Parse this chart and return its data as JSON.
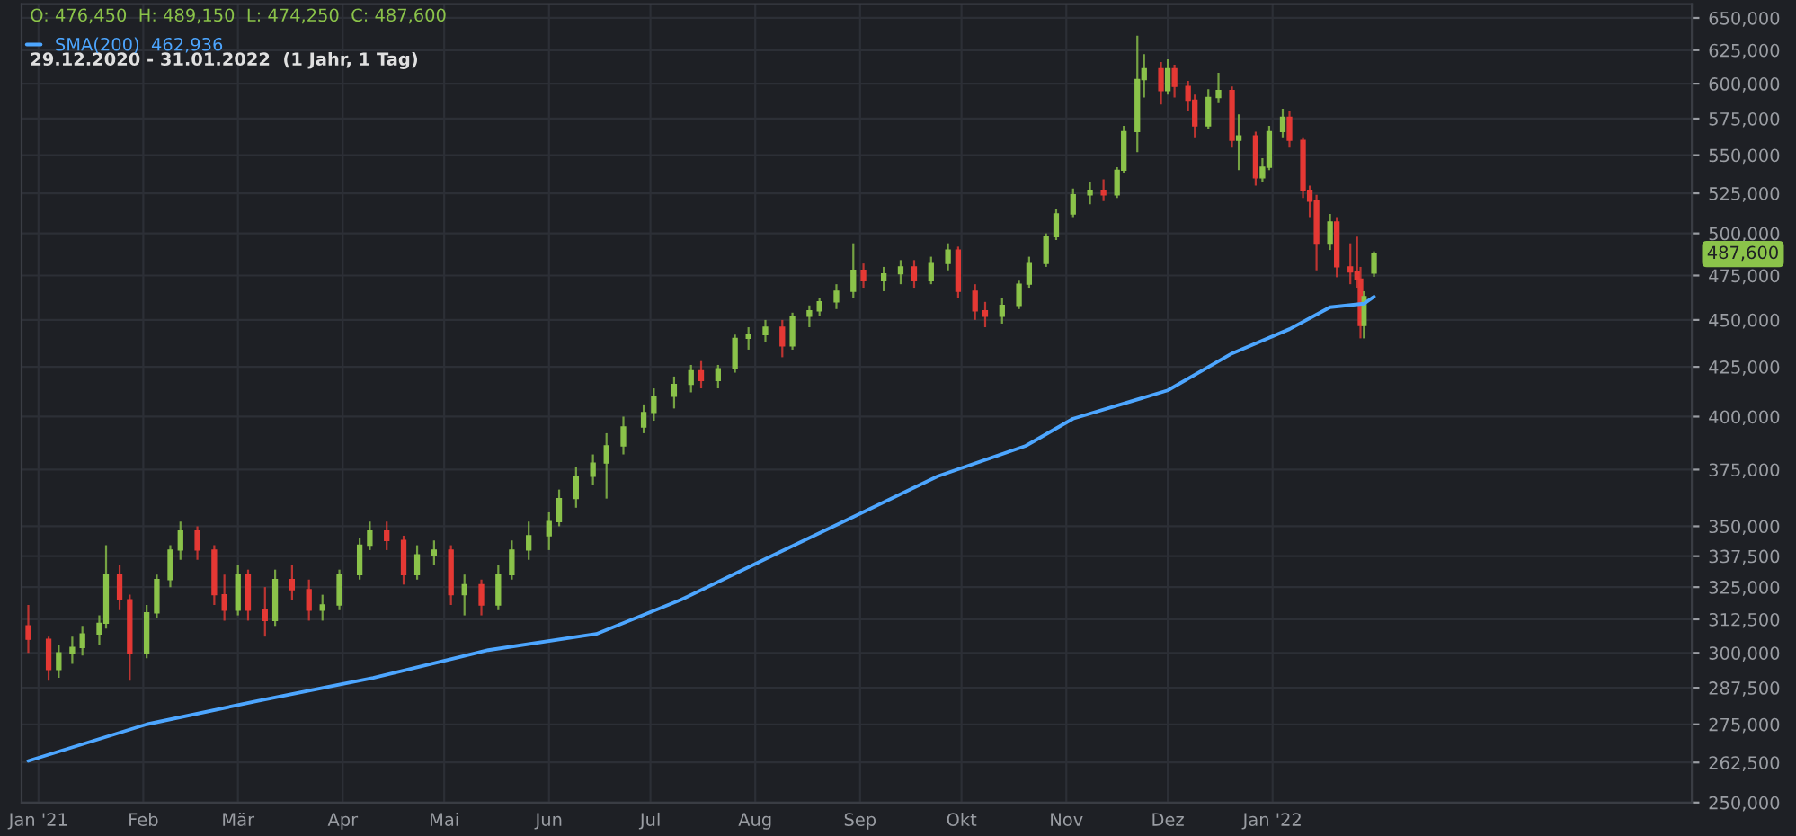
{
  "chart_data": {
    "type": "candlestick",
    "title": "O: 476,450  H: 489,150  L: 474,250  C: 487,600",
    "subtitle": "29.12.2020 - 31.01.2022  (1 Jahr, 1 Tag)",
    "x": [
      "2020-12-29",
      "2021-01-04",
      "2021-01-07",
      "2021-01-11",
      "2021-01-14",
      "2021-01-19",
      "2021-01-21",
      "2021-01-25",
      "2021-01-28",
      "2021-02-02",
      "2021-02-05",
      "2021-02-09",
      "2021-02-12",
      "2021-02-17",
      "2021-02-22",
      "2021-02-25",
      "2021-03-01",
      "2021-03-04",
      "2021-03-09",
      "2021-03-12",
      "2021-03-17",
      "2021-03-22",
      "2021-03-26",
      "2021-03-31",
      "2021-04-06",
      "2021-04-09",
      "2021-04-14",
      "2021-04-19",
      "2021-04-23",
      "2021-04-28",
      "2021-05-03",
      "2021-05-07",
      "2021-05-12",
      "2021-05-17",
      "2021-05-21",
      "2021-05-26",
      "2021-06-01",
      "2021-06-04",
      "2021-06-09",
      "2021-06-14",
      "2021-06-18",
      "2021-06-23",
      "2021-06-29",
      "2021-07-02",
      "2021-07-08",
      "2021-07-13",
      "2021-07-16",
      "2021-07-21",
      "2021-07-26",
      "2021-07-30",
      "2021-08-04",
      "2021-08-09",
      "2021-08-12",
      "2021-08-17",
      "2021-08-20",
      "2021-08-25",
      "2021-08-30",
      "2021-09-02",
      "2021-09-08",
      "2021-09-13",
      "2021-09-17",
      "2021-09-22",
      "2021-09-27",
      "2021-09-30",
      "2021-10-05",
      "2021-10-08",
      "2021-10-13",
      "2021-10-18",
      "2021-10-21",
      "2021-10-26",
      "2021-10-29",
      "2021-11-03",
      "2021-11-08",
      "2021-11-12",
      "2021-11-16",
      "2021-11-18",
      "2021-11-22",
      "2021-11-24",
      "2021-11-29",
      "2021-12-01",
      "2021-12-03",
      "2021-12-07",
      "2021-12-09",
      "2021-12-13",
      "2021-12-16",
      "2021-12-20",
      "2021-12-22",
      "2021-12-27",
      "2021-12-29",
      "2021-12-31",
      "2022-01-04",
      "2022-01-06",
      "2022-01-10",
      "2022-01-12",
      "2022-01-14",
      "2022-01-18",
      "2022-01-20",
      "2022-01-24",
      "2022-01-26",
      "2022-01-27",
      "2022-01-28",
      "2022-01-31"
    ],
    "ohlc": [
      [
        310000,
        318000,
        300000,
        305000
      ],
      [
        305000,
        306000,
        290000,
        294000
      ],
      [
        294000,
        303000,
        291000,
        300000
      ],
      [
        300000,
        306000,
        296000,
        302000
      ],
      [
        302000,
        310000,
        299000,
        307000
      ],
      [
        307000,
        314000,
        303000,
        311000
      ],
      [
        311000,
        342000,
        309000,
        330000
      ],
      [
        330000,
        334000,
        316000,
        320000
      ],
      [
        320000,
        322000,
        290000,
        300000
      ],
      [
        300000,
        318000,
        298000,
        315000
      ],
      [
        315000,
        330000,
        313000,
        328000
      ],
      [
        328000,
        342000,
        325000,
        340000
      ],
      [
        340000,
        352000,
        336000,
        348000
      ],
      [
        348000,
        350000,
        336000,
        340000
      ],
      [
        340000,
        342000,
        318000,
        322000
      ],
      [
        322000,
        330000,
        312000,
        316000
      ],
      [
        316000,
        334000,
        314000,
        330000
      ],
      [
        330000,
        332000,
        312000,
        316000
      ],
      [
        316000,
        325000,
        306000,
        312000
      ],
      [
        312000,
        332000,
        310000,
        328000
      ],
      [
        328000,
        334000,
        320000,
        324000
      ],
      [
        324000,
        328000,
        312000,
        316000
      ],
      [
        316000,
        322000,
        312000,
        318000
      ],
      [
        318000,
        332000,
        316000,
        330000
      ],
      [
        330000,
        345000,
        328000,
        342000
      ],
      [
        342000,
        352000,
        340000,
        348000
      ],
      [
        348000,
        352000,
        340000,
        344000
      ],
      [
        344000,
        346000,
        326000,
        330000
      ],
      [
        330000,
        342000,
        328000,
        338000
      ],
      [
        338000,
        344000,
        334000,
        340000
      ],
      [
        340000,
        342000,
        318000,
        322000
      ],
      [
        322000,
        330000,
        314000,
        326000
      ],
      [
        326000,
        328000,
        314000,
        318000
      ],
      [
        318000,
        334000,
        316000,
        330000
      ],
      [
        330000,
        344000,
        328000,
        340000
      ],
      [
        340000,
        352000,
        336000,
        346000
      ],
      [
        346000,
        356000,
        340000,
        352000
      ],
      [
        352000,
        366000,
        350000,
        362000
      ],
      [
        362000,
        376000,
        358000,
        372000
      ],
      [
        372000,
        382000,
        368000,
        378000
      ],
      [
        378000,
        392000,
        362000,
        386000
      ],
      [
        386000,
        400000,
        382000,
        395000
      ],
      [
        395000,
        406000,
        392000,
        402000
      ],
      [
        402000,
        414000,
        398000,
        410000
      ],
      [
        410000,
        420000,
        404000,
        416000
      ],
      [
        416000,
        426000,
        412000,
        423000
      ],
      [
        423000,
        428000,
        414000,
        418000
      ],
      [
        418000,
        426000,
        414000,
        424000
      ],
      [
        424000,
        442000,
        422000,
        440000
      ],
      [
        440000,
        446000,
        434000,
        442000
      ],
      [
        442000,
        450000,
        438000,
        446000
      ],
      [
        446000,
        450000,
        430000,
        436000
      ],
      [
        436000,
        454000,
        434000,
        452000
      ],
      [
        452000,
        458000,
        446000,
        455000
      ],
      [
        455000,
        462000,
        452000,
        460000
      ],
      [
        460000,
        470000,
        456000,
        466000
      ],
      [
        466000,
        494000,
        462000,
        478000
      ],
      [
        478000,
        482000,
        468000,
        472000
      ],
      [
        472000,
        480000,
        466000,
        476000
      ],
      [
        476000,
        484000,
        470000,
        480000
      ],
      [
        480000,
        484000,
        468000,
        472000
      ],
      [
        472000,
        486000,
        470000,
        482000
      ],
      [
        482000,
        494000,
        478000,
        490000
      ],
      [
        490000,
        492000,
        462000,
        466000
      ],
      [
        466000,
        470000,
        450000,
        455000
      ],
      [
        455000,
        460000,
        446000,
        452000
      ],
      [
        452000,
        462000,
        448000,
        458000
      ],
      [
        458000,
        472000,
        456000,
        470000
      ],
      [
        470000,
        486000,
        468000,
        482000
      ],
      [
        482000,
        500000,
        480000,
        498000
      ],
      [
        498000,
        515000,
        496000,
        512000
      ],
      [
        512000,
        528000,
        510000,
        524000
      ],
      [
        524000,
        532000,
        518000,
        527000
      ],
      [
        527000,
        534000,
        520000,
        524000
      ],
      [
        524000,
        542000,
        522000,
        540000
      ],
      [
        540000,
        570000,
        538000,
        566000
      ],
      [
        566000,
        636000,
        552000,
        603000
      ],
      [
        603000,
        622000,
        590000,
        611000
      ],
      [
        611000,
        616000,
        585000,
        595000
      ],
      [
        595000,
        618000,
        592000,
        611000
      ],
      [
        611000,
        614000,
        590000,
        598000
      ],
      [
        598000,
        602000,
        580000,
        588000
      ],
      [
        588000,
        592000,
        562000,
        570000
      ],
      [
        570000,
        596000,
        568000,
        590000
      ],
      [
        590000,
        608000,
        586000,
        595000
      ],
      [
        595000,
        598000,
        555000,
        560000
      ],
      [
        560000,
        578000,
        540000,
        563000
      ],
      [
        563000,
        566000,
        530000,
        535000
      ],
      [
        535000,
        548000,
        532000,
        542000
      ],
      [
        542000,
        570000,
        540000,
        566000
      ],
      [
        566000,
        582000,
        562000,
        576000
      ],
      [
        576000,
        580000,
        555000,
        560000
      ],
      [
        560000,
        562000,
        522000,
        527000
      ],
      [
        527000,
        530000,
        510000,
        520000
      ],
      [
        520000,
        524000,
        478000,
        494000
      ],
      [
        494000,
        512000,
        490000,
        507000
      ],
      [
        507000,
        510000,
        474000,
        480000
      ],
      [
        480000,
        494000,
        470000,
        477000
      ],
      [
        477000,
        498000,
        468000,
        473000
      ],
      [
        473000,
        480000,
        440000,
        447000
      ],
      [
        447000,
        466000,
        440000,
        463000
      ],
      [
        476450,
        489150,
        474250,
        487600
      ]
    ],
    "colors": [
      "#e53935",
      "#e53935",
      "#8bc34a",
      "#8bc34a",
      "#8bc34a",
      "#8bc34a",
      "#8bc34a",
      "#e53935",
      "#e53935",
      "#8bc34a",
      "#8bc34a",
      "#8bc34a",
      "#8bc34a",
      "#e53935",
      "#e53935",
      "#e53935",
      "#8bc34a",
      "#e53935",
      "#e53935",
      "#8bc34a",
      "#e53935",
      "#e53935",
      "#8bc34a",
      "#8bc34a",
      "#8bc34a",
      "#8bc34a",
      "#e53935",
      "#e53935",
      "#8bc34a",
      "#8bc34a",
      "#e53935",
      "#8bc34a",
      "#e53935",
      "#8bc34a",
      "#8bc34a",
      "#8bc34a",
      "#8bc34a",
      "#8bc34a",
      "#8bc34a",
      "#8bc34a",
      "#8bc34a",
      "#8bc34a",
      "#8bc34a",
      "#8bc34a",
      "#8bc34a",
      "#8bc34a",
      "#e53935",
      "#8bc34a",
      "#8bc34a",
      "#8bc34a",
      "#8bc34a",
      "#e53935",
      "#8bc34a",
      "#8bc34a",
      "#8bc34a",
      "#8bc34a",
      "#8bc34a",
      "#e53935",
      "#8bc34a",
      "#8bc34a",
      "#e53935",
      "#8bc34a",
      "#8bc34a",
      "#e53935",
      "#e53935",
      "#e53935",
      "#8bc34a",
      "#8bc34a",
      "#8bc34a",
      "#8bc34a",
      "#8bc34a",
      "#8bc34a",
      "#8bc34a",
      "#e53935",
      "#8bc34a",
      "#8bc34a",
      "#8bc34a",
      "#8bc34a",
      "#e53935",
      "#8bc34a",
      "#e53935",
      "#e53935",
      "#e53935",
      "#8bc34a",
      "#8bc34a",
      "#e53935",
      "#8bc34a",
      "#e53935",
      "#8bc34a",
      "#8bc34a",
      "#8bc34a",
      "#e53935",
      "#e53935",
      "#e53935",
      "#e53935",
      "#8bc34a",
      "#e53935",
      "#e53935",
      "#e53935",
      "#e53935",
      "#8bc34a",
      "#8bc34a"
    ],
    "series": [
      {
        "type": "line",
        "name": "SMA(200)  462,936",
        "color": "#4da6ff",
        "x": [
          "2020-12-29",
          "2021-02-02",
          "2021-03-07",
          "2021-04-10",
          "2021-05-14",
          "2021-06-15",
          "2021-07-10",
          "2021-08-05",
          "2021-08-30",
          "2021-09-24",
          "2021-10-20",
          "2021-11-03",
          "2021-12-01",
          "2021-12-20",
          "2022-01-06",
          "2022-01-18",
          "2022-01-28",
          "2022-01-31"
        ],
        "values": [
          263000,
          275000,
          283000,
          291000,
          301000,
          307000,
          320000,
          337000,
          354000,
          372000,
          386000,
          399000,
          413000,
          432000,
          445000,
          457000,
          459000,
          462936
        ]
      }
    ],
    "annotations": [
      "487,600"
    ],
    "log": "y",
    "xlim": [
      "2020-12-27",
      "2022-05-05"
    ],
    "xticks": [
      {
        "value": "2021-01-01",
        "label": "Jan '21"
      },
      {
        "value": "2021-02-01",
        "label": "Feb"
      },
      {
        "value": "2021-03-01",
        "label": "Mär"
      },
      {
        "value": "2021-04-01",
        "label": "Apr"
      },
      {
        "value": "2021-05-01",
        "label": "Mai"
      },
      {
        "value": "2021-06-01",
        "label": "Jun"
      },
      {
        "value": "2021-07-01",
        "label": "Jul"
      },
      {
        "value": "2021-08-01",
        "label": "Aug"
      },
      {
        "value": "2021-09-01",
        "label": "Sep"
      },
      {
        "value": "2021-10-01",
        "label": "Okt"
      },
      {
        "value": "2021-11-01",
        "label": "Nov"
      },
      {
        "value": "2021-12-01",
        "label": "Dez"
      },
      {
        "value": "2022-01-01",
        "label": "Jan '22"
      }
    ],
    "ylim": [
      250000,
      661000
    ],
    "yticks": [
      {
        "value": 250000,
        "label": "250,000"
      },
      {
        "value": 262500,
        "label": "262,500"
      },
      {
        "value": 275000,
        "label": "275,000"
      },
      {
        "value": 287500,
        "label": "287,500"
      },
      {
        "value": 300000,
        "label": "300,000"
      },
      {
        "value": 312500,
        "label": "312,500"
      },
      {
        "value": 325000,
        "label": "325,000"
      },
      {
        "value": 337500,
        "label": "337,500"
      },
      {
        "value": 350000,
        "label": "350,000"
      },
      {
        "value": 375000,
        "label": "375,000"
      },
      {
        "value": 400000,
        "label": "400,000"
      },
      {
        "value": 425000,
        "label": "425,000"
      },
      {
        "value": 450000,
        "label": "450,000"
      },
      {
        "value": 475000,
        "label": "475,000"
      },
      {
        "value": 500000,
        "label": "500,000"
      },
      {
        "value": 525000,
        "label": "525,000"
      },
      {
        "value": 550000,
        "label": "550,000"
      },
      {
        "value": 575000,
        "label": "575,000"
      },
      {
        "value": 600000,
        "label": "600,000"
      },
      {
        "value": 625000,
        "label": "625,000"
      },
      {
        "value": 650000,
        "label": "650,000"
      }
    ],
    "grid": true,
    "legend": "top left"
  }
}
